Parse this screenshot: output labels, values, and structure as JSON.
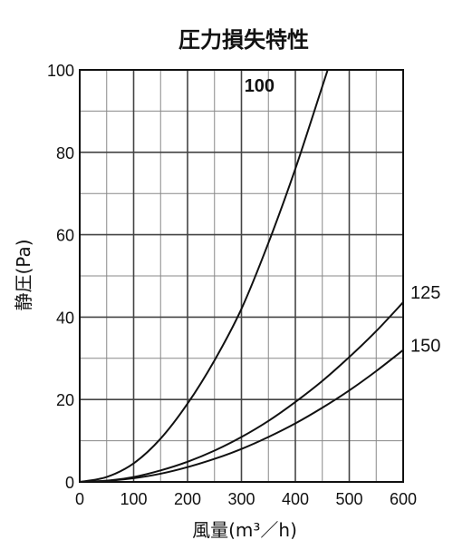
{
  "chart_data": {
    "type": "line",
    "title": "圧力損失特性",
    "xlabel": "風量(m³／h)",
    "ylabel": "静圧(Pa)",
    "xlim": [
      0,
      600
    ],
    "ylim": [
      0,
      100
    ],
    "grid": true,
    "x_ticks": [
      "0",
      "100",
      "200",
      "300",
      "400",
      "500",
      "600"
    ],
    "y_ticks": [
      "0",
      "20",
      "40",
      "60",
      "80",
      "100"
    ],
    "series": [
      {
        "name": "100",
        "x": [
          0,
          50,
          100,
          150,
          200,
          250,
          300,
          350,
          400,
          450,
          460
        ],
        "y": [
          0,
          1.2,
          4.5,
          10.5,
          19,
          29.5,
          42,
          58,
          76,
          96,
          100
        ]
      },
      {
        "name": "125",
        "x": [
          0,
          50,
          100,
          150,
          200,
          250,
          300,
          350,
          400,
          450,
          500,
          550,
          600
        ],
        "y": [
          0,
          0.3,
          1.2,
          2.8,
          4.9,
          7.6,
          10.9,
          14.8,
          19.4,
          24.5,
          30.3,
          36.6,
          43.6
        ]
      },
      {
        "name": "150",
        "x": [
          0,
          50,
          100,
          150,
          200,
          250,
          300,
          350,
          400,
          450,
          500,
          550,
          600
        ],
        "y": [
          0,
          0.25,
          0.9,
          2.0,
          3.6,
          5.6,
          8.0,
          10.9,
          14.2,
          18.0,
          22.2,
          26.9,
          32.0
        ]
      }
    ]
  }
}
